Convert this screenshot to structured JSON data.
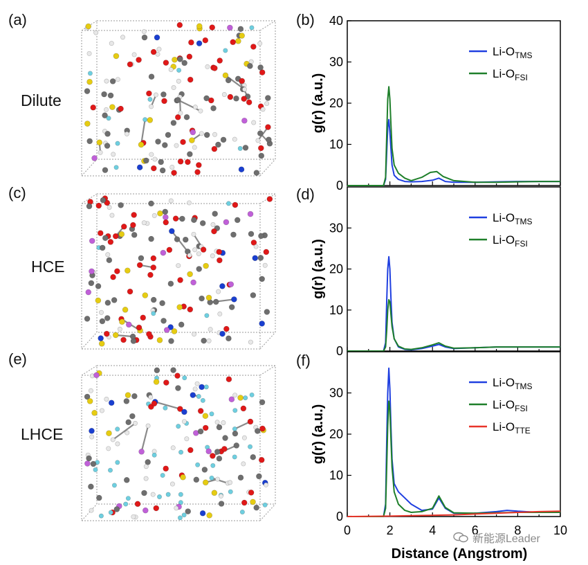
{
  "panels": {
    "a": "(a)",
    "b": "(b)",
    "c": "(c)",
    "d": "(d)",
    "e": "(e)",
    "f": "(f)"
  },
  "systems": [
    "Dilute",
    "HCE",
    "LHCE"
  ],
  "watermark": "新能源Leader",
  "colors": {
    "TMS": "#1f3fe0",
    "FSI": "#1e7f2a",
    "TTE": "#e8342a",
    "axis": "#000000",
    "box": "#9a9a9a"
  },
  "chart_data": [
    {
      "type": "line",
      "panel": "(b)",
      "system": "Dilute",
      "xlabel": "",
      "ylabel": "g(r) (a.u.)",
      "xlim": [
        0,
        10
      ],
      "ylim": [
        0,
        40
      ],
      "yticks": [
        0,
        10,
        20,
        30,
        40
      ],
      "legend_position": "top-right",
      "series": [
        {
          "name": "Li-O",
          "sub": "TMS",
          "color": "#1f3fe0",
          "x": [
            0,
            1.7,
            1.8,
            1.85,
            1.9,
            1.95,
            2.0,
            2.05,
            2.1,
            2.2,
            2.4,
            2.7,
            3.0,
            3.5,
            4.0,
            4.3,
            4.6,
            5.0,
            6.0,
            7.0,
            8.0,
            9.0,
            10.0
          ],
          "y": [
            0,
            0,
            1.5,
            8,
            14,
            16,
            13,
            9,
            5,
            2.5,
            1.5,
            1.0,
            0.9,
            1.0,
            1.3,
            1.8,
            1.0,
            0.8,
            0.8,
            0.9,
            1.0,
            1.0,
            1.0
          ]
        },
        {
          "name": "Li-O",
          "sub": "FSI",
          "color": "#1e7f2a",
          "x": [
            0,
            1.7,
            1.8,
            1.85,
            1.9,
            1.95,
            2.0,
            2.05,
            2.1,
            2.2,
            2.4,
            2.7,
            3.0,
            3.5,
            3.9,
            4.2,
            4.5,
            5.0,
            6.0,
            7.0,
            8.0,
            9.0,
            10.0
          ],
          "y": [
            0,
            0,
            2,
            12,
            21,
            24,
            21,
            15,
            9,
            5,
            3,
            1.8,
            1.2,
            2.0,
            3.2,
            3.4,
            2.2,
            1.2,
            0.8,
            0.8,
            0.9,
            1.0,
            1.0
          ]
        }
      ]
    },
    {
      "type": "line",
      "panel": "(d)",
      "system": "HCE",
      "xlabel": "",
      "ylabel": "g(r) (a.u.)",
      "xlim": [
        0,
        10
      ],
      "ylim": [
        0,
        40
      ],
      "yticks": [
        0,
        10,
        20,
        30
      ],
      "legend_position": "top-right",
      "series": [
        {
          "name": "Li-O",
          "sub": "TMS",
          "color": "#1f3fe0",
          "x": [
            0,
            1.7,
            1.8,
            1.85,
            1.9,
            1.95,
            2.0,
            2.05,
            2.1,
            2.2,
            2.4,
            2.7,
            3.0,
            3.5,
            4.0,
            4.3,
            4.6,
            5.0,
            6.0,
            7.0,
            8.0,
            9.0,
            10.0
          ],
          "y": [
            0,
            0,
            2,
            12,
            20,
            23,
            20,
            13,
            7,
            3,
            1,
            0.4,
            0.3,
            0.6,
            1.2,
            1.6,
            1.0,
            0.6,
            0.8,
            1.0,
            1.0,
            1.0,
            1.0
          ]
        },
        {
          "name": "Li-O",
          "sub": "FSI",
          "color": "#1e7f2a",
          "x": [
            0,
            1.7,
            1.8,
            1.85,
            1.9,
            1.95,
            2.0,
            2.05,
            2.1,
            2.2,
            2.4,
            2.7,
            3.0,
            3.5,
            4.0,
            4.3,
            4.6,
            5.0,
            6.0,
            7.0,
            8.0,
            9.0,
            10.0
          ],
          "y": [
            0,
            0,
            1,
            5,
            10,
            12.5,
            12,
            9,
            6,
            3,
            1.2,
            0.5,
            0.4,
            0.8,
            1.5,
            2.0,
            1.2,
            0.7,
            0.8,
            1.0,
            1.0,
            1.0,
            1.0
          ]
        }
      ]
    },
    {
      "type": "line",
      "panel": "(f)",
      "system": "LHCE",
      "xlabel": "Distance (Angstrom)",
      "ylabel": "g(r) (a.u.)",
      "xlim": [
        0,
        10
      ],
      "ylim": [
        0,
        40
      ],
      "yticks": [
        0,
        10,
        20,
        30
      ],
      "xticks": [
        0,
        2,
        4,
        6,
        8,
        10
      ],
      "legend_position": "top-right",
      "series": [
        {
          "name": "Li-O",
          "sub": "TMS",
          "color": "#1f3fe0",
          "x": [
            0,
            1.7,
            1.8,
            1.85,
            1.9,
            1.95,
            2.0,
            2.05,
            2.1,
            2.2,
            2.4,
            2.7,
            3.0,
            3.5,
            4.0,
            4.3,
            4.6,
            5.0,
            6.0,
            7.0,
            7.5,
            8.0,
            9.0,
            10.0
          ],
          "y": [
            0,
            0,
            3,
            18,
            30,
            36,
            31,
            22,
            14,
            8,
            6,
            4.5,
            3,
            1.5,
            1.8,
            4.5,
            2,
            0.8,
            0.8,
            1.2,
            1.5,
            1.3,
            1.0,
            1.0
          ]
        },
        {
          "name": "Li-O",
          "sub": "FSI",
          "color": "#1e7f2a",
          "x": [
            0,
            1.7,
            1.8,
            1.85,
            1.9,
            1.95,
            2.0,
            2.05,
            2.1,
            2.2,
            2.4,
            2.7,
            3.0,
            3.5,
            4.0,
            4.3,
            4.6,
            5.0,
            6.0,
            7.0,
            8.0,
            9.0,
            10.0
          ],
          "y": [
            0,
            0,
            2,
            12,
            22,
            28,
            26,
            19,
            12,
            6,
            3,
            1.5,
            1.0,
            1.2,
            2.0,
            5.0,
            2.2,
            0.9,
            0.8,
            0.9,
            1.0,
            1.0,
            1.0
          ]
        },
        {
          "name": "Li-O",
          "sub": "TTE",
          "color": "#e8342a",
          "x": [
            0,
            2.0,
            3.0,
            4.0,
            5.0,
            6.0,
            7.0,
            8.0,
            9.0,
            10.0
          ],
          "y": [
            0,
            0.1,
            0.2,
            0.3,
            0.4,
            0.6,
            0.8,
            1.0,
            1.2,
            1.3
          ]
        }
      ]
    }
  ]
}
